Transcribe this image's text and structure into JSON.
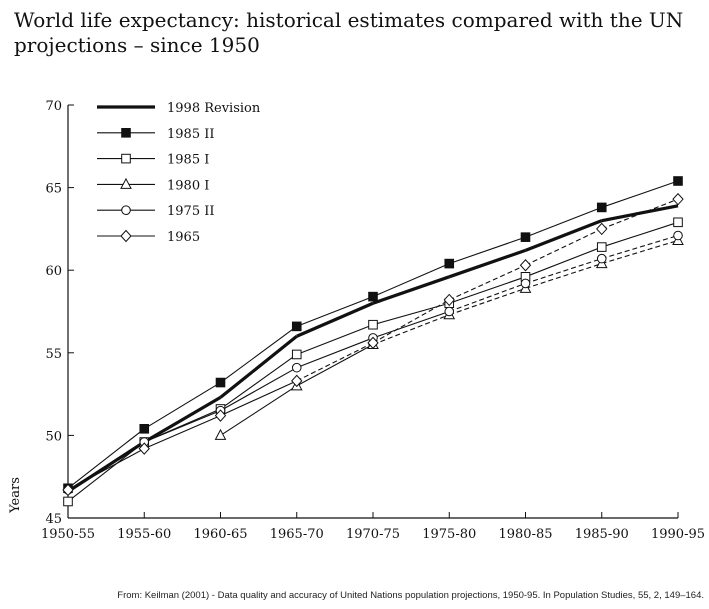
{
  "title": "World life expectancy: historical estimates compared with the UN projections – since 1950",
  "source": "From: Keilman (2001) - Data quality and accuracy of United Nations population projections, 1950-95. In Population Studies, 55, 2, 149–164.",
  "chart_data": {
    "type": "line",
    "ylabel": "Years",
    "xlabel": "",
    "ylim": [
      45,
      70
    ],
    "yticks": [
      45,
      50,
      55,
      60,
      65,
      70
    ],
    "categories": [
      "1950-55",
      "1955-60",
      "1960-65",
      "1965-70",
      "1970-75",
      "1975-80",
      "1980-85",
      "1985-90",
      "1990-95"
    ],
    "legend_position": "top-left",
    "series": [
      {
        "name": "1998 Revision",
        "marker": "none",
        "values": [
          46.6,
          49.6,
          52.3,
          56.0,
          58.0,
          59.6,
          61.2,
          63.0,
          63.9
        ]
      },
      {
        "name": "1985 II",
        "marker": "filled-square",
        "values": [
          46.8,
          50.4,
          53.2,
          56.6,
          58.4,
          60.4,
          62.0,
          63.8,
          65.4
        ]
      },
      {
        "name": "1985 I",
        "marker": "open-square",
        "values": [
          46.0,
          49.6,
          51.6,
          54.9,
          56.7,
          58.0,
          59.6,
          61.4,
          62.9
        ]
      },
      {
        "name": "1980 I",
        "marker": "open-triangle",
        "values": [
          null,
          null,
          50.0,
          53.0,
          55.5,
          57.3,
          58.9,
          60.4,
          61.8
        ]
      },
      {
        "name": "1975 II",
        "marker": "open-circle",
        "values": [
          46.7,
          49.6,
          51.5,
          54.1,
          55.9,
          57.5,
          59.2,
          60.7,
          62.1
        ]
      },
      {
        "name": "1965",
        "marker": "open-diamond",
        "values": [
          46.7,
          49.2,
          51.2,
          53.3,
          55.6,
          58.2,
          60.3,
          62.5,
          64.3
        ]
      }
    ]
  }
}
